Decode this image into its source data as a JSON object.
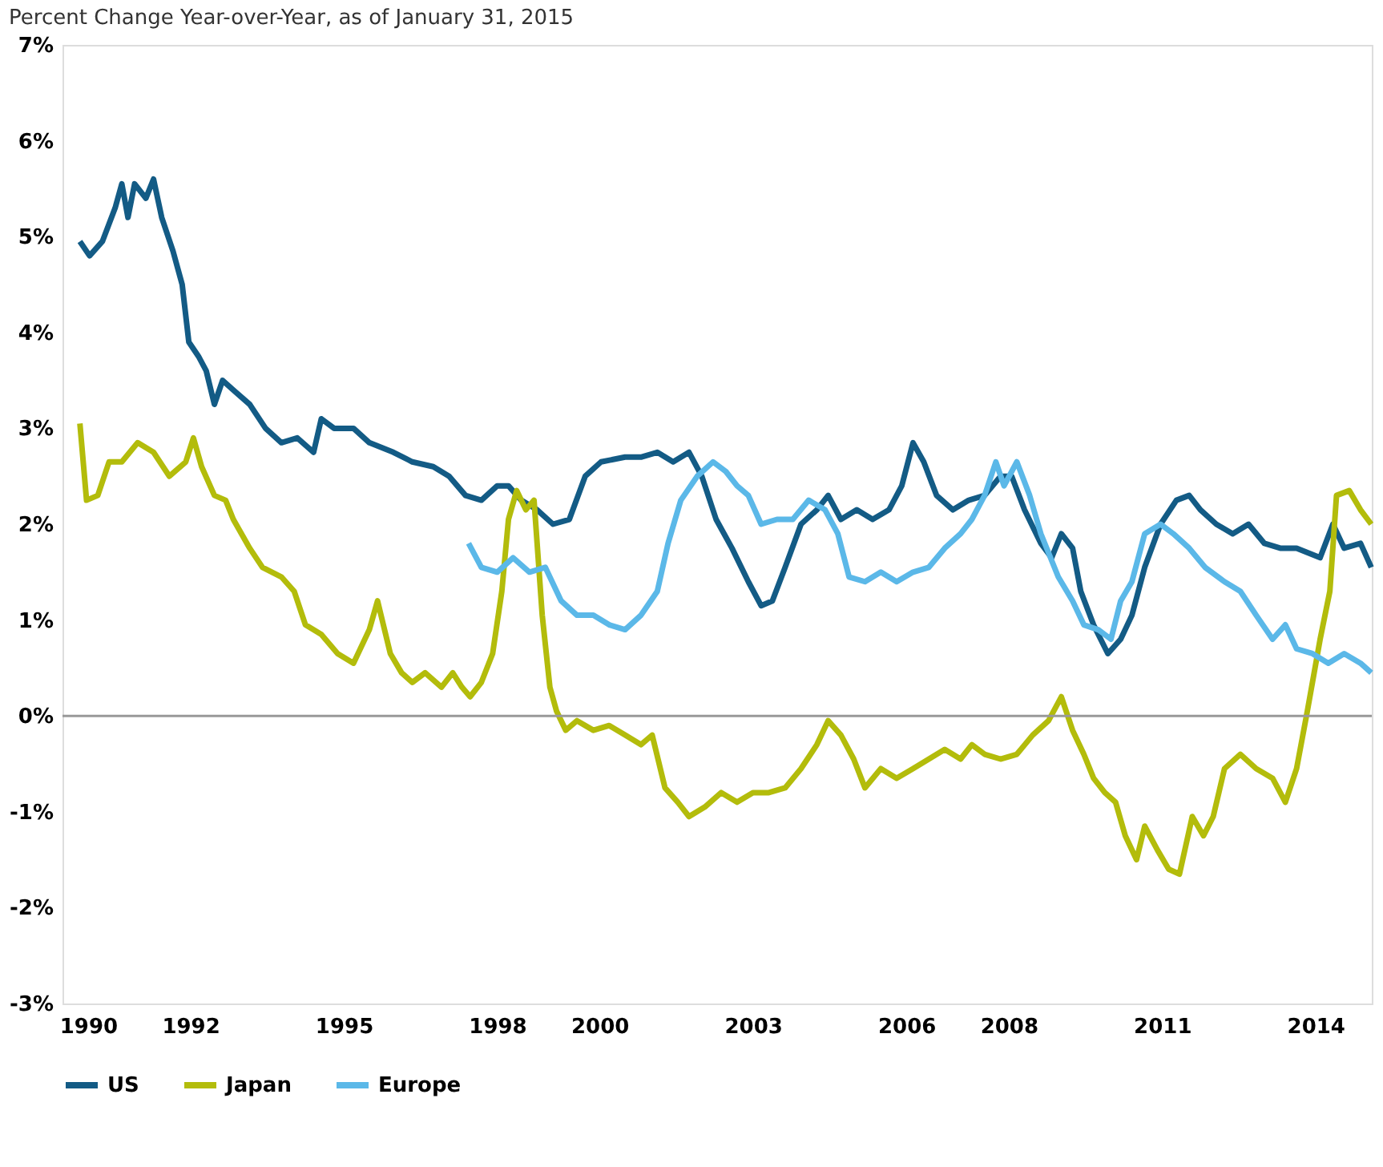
{
  "chart_data": {
    "type": "line",
    "title": "Percent Change Year-over-Year, as of January 31, 2015",
    "xlim": [
      1989.5,
      2015.1
    ],
    "xticks": [
      1990,
      1992,
      1995,
      1998,
      2000,
      2003,
      2006,
      2008,
      2011,
      2014
    ],
    "ylim": [
      -3,
      7
    ],
    "yticks": [
      {
        "value": -3,
        "label": "-3%"
      },
      {
        "value": -2,
        "label": "-2%"
      },
      {
        "value": -1,
        "label": "-1%"
      },
      {
        "value": 0,
        "label": "0%"
      },
      {
        "value": 1,
        "label": "1%"
      },
      {
        "value": 2,
        "label": "2%"
      },
      {
        "value": 3,
        "label": "3%"
      },
      {
        "value": 4,
        "label": "4%"
      },
      {
        "value": 5,
        "label": "5%"
      },
      {
        "value": 6,
        "label": "6%"
      },
      {
        "value": 7,
        "label": "7%"
      }
    ],
    "grid": false,
    "legend": "bottom",
    "line_style": "solid",
    "ref_lines": [
      {
        "axis": "y",
        "value": 0,
        "color": "#999999"
      }
    ],
    "series": [
      {
        "name": "US",
        "color": "#135b85",
        "x": [
          1989.84,
          1990.03,
          1990.28,
          1990.53,
          1990.66,
          1990.78,
          1990.91,
          1991.13,
          1991.28,
          1991.44,
          1991.66,
          1991.84,
          1991.97,
          1992.16,
          1992.31,
          1992.47,
          1992.63,
          1992.84,
          1993.16,
          1993.47,
          1993.78,
          1994.09,
          1994.41,
          1994.56,
          1994.81,
          1995.19,
          1995.5,
          1995.97,
          1996.34,
          1996.75,
          1997.06,
          1997.38,
          1997.69,
          1998.0,
          1998.22,
          1998.47,
          1998.78,
          1999.09,
          1999.41,
          1999.72,
          2000.03,
          2000.5,
          2000.81,
          2001.13,
          2001.44,
          2001.75,
          2002.0,
          2002.28,
          2002.59,
          2002.91,
          2003.16,
          2003.38,
          2003.63,
          2003.94,
          2004.25,
          2004.47,
          2004.72,
          2005.03,
          2005.34,
          2005.66,
          2005.91,
          2006.13,
          2006.34,
          2006.59,
          2006.91,
          2007.22,
          2007.53,
          2007.84,
          2008.06,
          2008.31,
          2008.63,
          2008.84,
          2009.03,
          2009.25,
          2009.41,
          2009.66,
          2009.94,
          2010.19,
          2010.41,
          2010.66,
          2010.97,
          2011.28,
          2011.53,
          2011.75,
          2012.06,
          2012.38,
          2012.69,
          2013.0,
          2013.31,
          2013.63,
          2014.09,
          2014.34,
          2014.56,
          2014.88,
          2015.09
        ],
        "values": [
          4.95,
          4.8,
          4.95,
          5.3,
          5.55,
          5.2,
          5.55,
          5.4,
          5.6,
          5.2,
          4.85,
          4.5,
          3.9,
          3.75,
          3.6,
          3.25,
          3.5,
          3.4,
          3.25,
          3.0,
          2.85,
          2.9,
          2.75,
          3.1,
          3.0,
          3.0,
          2.85,
          2.75,
          2.65,
          2.6,
          2.5,
          2.3,
          2.25,
          2.4,
          2.4,
          2.25,
          2.15,
          2.0,
          2.05,
          2.5,
          2.65,
          2.7,
          2.7,
          2.75,
          2.65,
          2.75,
          2.5,
          2.05,
          1.75,
          1.4,
          1.15,
          1.2,
          1.55,
          2.0,
          2.15,
          2.3,
          2.05,
          2.15,
          2.05,
          2.15,
          2.4,
          2.85,
          2.65,
          2.3,
          2.15,
          2.25,
          2.3,
          2.5,
          2.5,
          2.15,
          1.8,
          1.65,
          1.9,
          1.75,
          1.3,
          0.95,
          0.65,
          0.8,
          1.05,
          1.55,
          2.0,
          2.25,
          2.3,
          2.15,
          2.0,
          1.9,
          2.0,
          1.8,
          1.75,
          1.75,
          1.65,
          2.0,
          1.75,
          1.8,
          1.55
        ]
      },
      {
        "name": "Japan",
        "color": "#b3bc0b",
        "x": [
          1989.84,
          1989.97,
          1990.19,
          1990.41,
          1990.66,
          1990.97,
          1991.28,
          1991.59,
          1991.91,
          1992.06,
          1992.22,
          1992.47,
          1992.69,
          1992.84,
          1993.16,
          1993.41,
          1993.78,
          1994.03,
          1994.25,
          1994.56,
          1994.88,
          1995.19,
          1995.5,
          1995.66,
          1995.91,
          1996.13,
          1996.34,
          1996.59,
          1996.91,
          1997.13,
          1997.31,
          1997.47,
          1997.69,
          1997.91,
          1998.09,
          1998.22,
          1998.38,
          1998.56,
          1998.72,
          1998.88,
          1999.03,
          1999.16,
          1999.34,
          1999.56,
          1999.88,
          2000.19,
          2000.5,
          2000.81,
          2001.03,
          2001.28,
          2001.53,
          2001.75,
          2002.06,
          2002.38,
          2002.69,
          2003.0,
          2003.31,
          2003.63,
          2003.94,
          2004.25,
          2004.47,
          2004.72,
          2004.97,
          2005.19,
          2005.5,
          2005.81,
          2006.13,
          2006.44,
          2006.75,
          2007.06,
          2007.28,
          2007.53,
          2007.84,
          2008.16,
          2008.47,
          2008.78,
          2009.03,
          2009.25,
          2009.47,
          2009.66,
          2009.88,
          2010.09,
          2010.28,
          2010.5,
          2010.66,
          2010.91,
          2011.13,
          2011.34,
          2011.59,
          2011.81,
          2012.0,
          2012.22,
          2012.53,
          2012.84,
          2013.16,
          2013.41,
          2013.63,
          2013.84,
          2014.09,
          2014.28,
          2014.41,
          2014.66,
          2014.88,
          2015.09
        ],
        "values": [
          3.05,
          2.25,
          2.3,
          2.65,
          2.65,
          2.85,
          2.75,
          2.5,
          2.65,
          2.9,
          2.6,
          2.3,
          2.25,
          2.05,
          1.75,
          1.55,
          1.45,
          1.3,
          0.95,
          0.85,
          0.65,
          0.55,
          0.9,
          1.2,
          0.65,
          0.45,
          0.35,
          0.45,
          0.3,
          0.45,
          0.3,
          0.2,
          0.35,
          0.65,
          1.3,
          2.05,
          2.35,
          2.15,
          2.25,
          1.05,
          0.3,
          0.05,
          -0.15,
          -0.05,
          -0.15,
          -0.1,
          -0.2,
          -0.3,
          -0.2,
          -0.75,
          -0.9,
          -1.05,
          -0.95,
          -0.8,
          -0.9,
          -0.8,
          -0.8,
          -0.75,
          -0.55,
          -0.3,
          -0.05,
          -0.2,
          -0.45,
          -0.75,
          -0.55,
          -0.65,
          -0.55,
          -0.45,
          -0.35,
          -0.45,
          -0.3,
          -0.4,
          -0.45,
          -0.4,
          -0.2,
          -0.05,
          0.2,
          -0.15,
          -0.4,
          -0.65,
          -0.8,
          -0.9,
          -1.25,
          -1.5,
          -1.15,
          -1.4,
          -1.6,
          -1.65,
          -1.05,
          -1.25,
          -1.05,
          -0.55,
          -0.4,
          -0.55,
          -0.65,
          -0.9,
          -0.55,
          0.05,
          0.8,
          1.3,
          2.3,
          2.35,
          2.15,
          2.0
        ]
      },
      {
        "name": "Europe",
        "color": "#5bb8e8",
        "x": [
          1997.44,
          1997.69,
          1998.0,
          1998.31,
          1998.63,
          1998.94,
          1999.25,
          1999.56,
          1999.88,
          2000.19,
          2000.5,
          2000.81,
          2001.13,
          2001.34,
          2001.59,
          2001.91,
          2002.22,
          2002.47,
          2002.69,
          2002.91,
          2003.16,
          2003.47,
          2003.78,
          2004.09,
          2004.41,
          2004.66,
          2004.88,
          2005.19,
          2005.5,
          2005.81,
          2006.13,
          2006.44,
          2006.75,
          2007.06,
          2007.28,
          2007.53,
          2007.75,
          2007.91,
          2008.16,
          2008.41,
          2008.63,
          2008.97,
          2009.25,
          2009.47,
          2009.75,
          2010.0,
          2010.19,
          2010.41,
          2010.66,
          2010.97,
          2011.22,
          2011.53,
          2011.84,
          2012.22,
          2012.53,
          2012.84,
          2013.16,
          2013.41,
          2013.63,
          2013.94,
          2014.25,
          2014.56,
          2014.88,
          2015.09
        ],
        "values": [
          1.8,
          1.55,
          1.5,
          1.65,
          1.5,
          1.55,
          1.2,
          1.05,
          1.05,
          0.95,
          0.9,
          1.05,
          1.3,
          1.8,
          2.25,
          2.5,
          2.65,
          2.55,
          2.4,
          2.3,
          2.0,
          2.05,
          2.05,
          2.25,
          2.15,
          1.9,
          1.45,
          1.4,
          1.5,
          1.4,
          1.5,
          1.55,
          1.75,
          1.9,
          2.05,
          2.3,
          2.65,
          2.4,
          2.65,
          2.3,
          1.9,
          1.45,
          1.2,
          0.95,
          0.9,
          0.8,
          1.2,
          1.4,
          1.9,
          2.0,
          1.9,
          1.75,
          1.55,
          1.4,
          1.3,
          1.05,
          0.8,
          0.95,
          0.7,
          0.65,
          0.55,
          0.65,
          0.55,
          0.45
        ]
      }
    ]
  }
}
